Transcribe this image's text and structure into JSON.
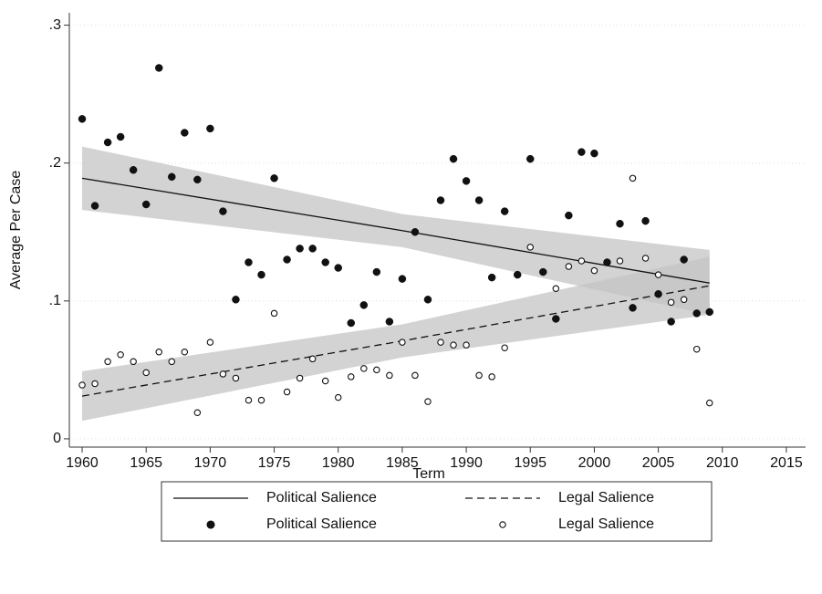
{
  "chart_data": {
    "type": "scatter",
    "x_label": "Term",
    "y_label": "Average Per Case",
    "xlim": [
      1959,
      2016.5
    ],
    "ylim": [
      -0.006,
      0.309
    ],
    "xticks": [
      1960,
      1965,
      1970,
      1975,
      1980,
      1985,
      1990,
      1995,
      2000,
      2005,
      2010,
      2015
    ],
    "yticks": [
      0,
      {
        "value": 0.1,
        "label": ".1"
      },
      {
        "value": 0.2,
        "label": ".2"
      },
      {
        "value": 0.3,
        "label": ".3"
      }
    ],
    "grid": true,
    "x": [
      1960,
      1961,
      1962,
      1963,
      1964,
      1965,
      1966,
      1967,
      1968,
      1969,
      1970,
      1971,
      1972,
      1973,
      1974,
      1975,
      1976,
      1977,
      1978,
      1979,
      1980,
      1981,
      1982,
      1983,
      1984,
      1985,
      1986,
      1987,
      1988,
      1989,
      1990,
      1991,
      1992,
      1993,
      1994,
      1995,
      1996,
      1997,
      1998,
      1999,
      2000,
      2001,
      2002,
      2003,
      2004,
      2005,
      2006,
      2007,
      2008,
      2009
    ],
    "series": [
      {
        "name": "Political Salience",
        "marker": "filled",
        "color": "#111111",
        "values": [
          0.232,
          0.169,
          0.215,
          0.219,
          0.195,
          0.17,
          0.269,
          0.19,
          0.222,
          0.188,
          0.225,
          0.165,
          0.101,
          0.128,
          0.119,
          0.189,
          0.13,
          0.138,
          0.138,
          0.128,
          0.124,
          0.084,
          0.097,
          0.121,
          0.085,
          0.116,
          0.15,
          0.101,
          0.173,
          0.203,
          0.187,
          0.173,
          0.117,
          0.165,
          0.119,
          0.203,
          0.121,
          0.087,
          0.162,
          0.208,
          0.207,
          0.128,
          0.156,
          0.095,
          0.158,
          0.105,
          0.085,
          0.13,
          0.091,
          0.092
        ]
      },
      {
        "name": "Legal Salience",
        "marker": "hollow",
        "color": "#111111",
        "values": [
          0.039,
          0.04,
          0.056,
          0.061,
          0.056,
          0.048,
          0.063,
          0.056,
          0.063,
          0.019,
          0.07,
          0.047,
          0.044,
          0.028,
          0.028,
          0.091,
          0.034,
          0.044,
          0.058,
          0.042,
          0.03,
          0.045,
          0.051,
          0.05,
          0.046,
          0.07,
          0.046,
          0.027,
          0.07,
          0.068,
          0.068,
          0.046,
          0.045,
          0.066,
          null,
          0.139,
          null,
          0.109,
          0.125,
          0.129,
          0.122,
          null,
          0.129,
          0.189,
          0.131,
          0.119,
          0.099,
          0.101,
          0.065,
          0.026
        ]
      }
    ],
    "fits": [
      {
        "name": "Political Salience",
        "style": "solid",
        "color": "#111111",
        "band_color": "#c4c4c4",
        "x": [
          1960,
          1985,
          2009
        ],
        "values": [
          0.189,
          0.151,
          0.113
        ],
        "lower": [
          0.166,
          0.139,
          0.09
        ],
        "upper": [
          0.212,
          0.163,
          0.137
        ]
      },
      {
        "name": "Legal Salience",
        "style": "dashed",
        "color": "#111111",
        "band_color": "#c4c4c4",
        "x": [
          1960,
          1985,
          2009
        ],
        "values": [
          0.031,
          0.071,
          0.111
        ],
        "lower": [
          0.013,
          0.059,
          0.09
        ],
        "upper": [
          0.049,
          0.083,
          0.132
        ]
      }
    ]
  }
}
